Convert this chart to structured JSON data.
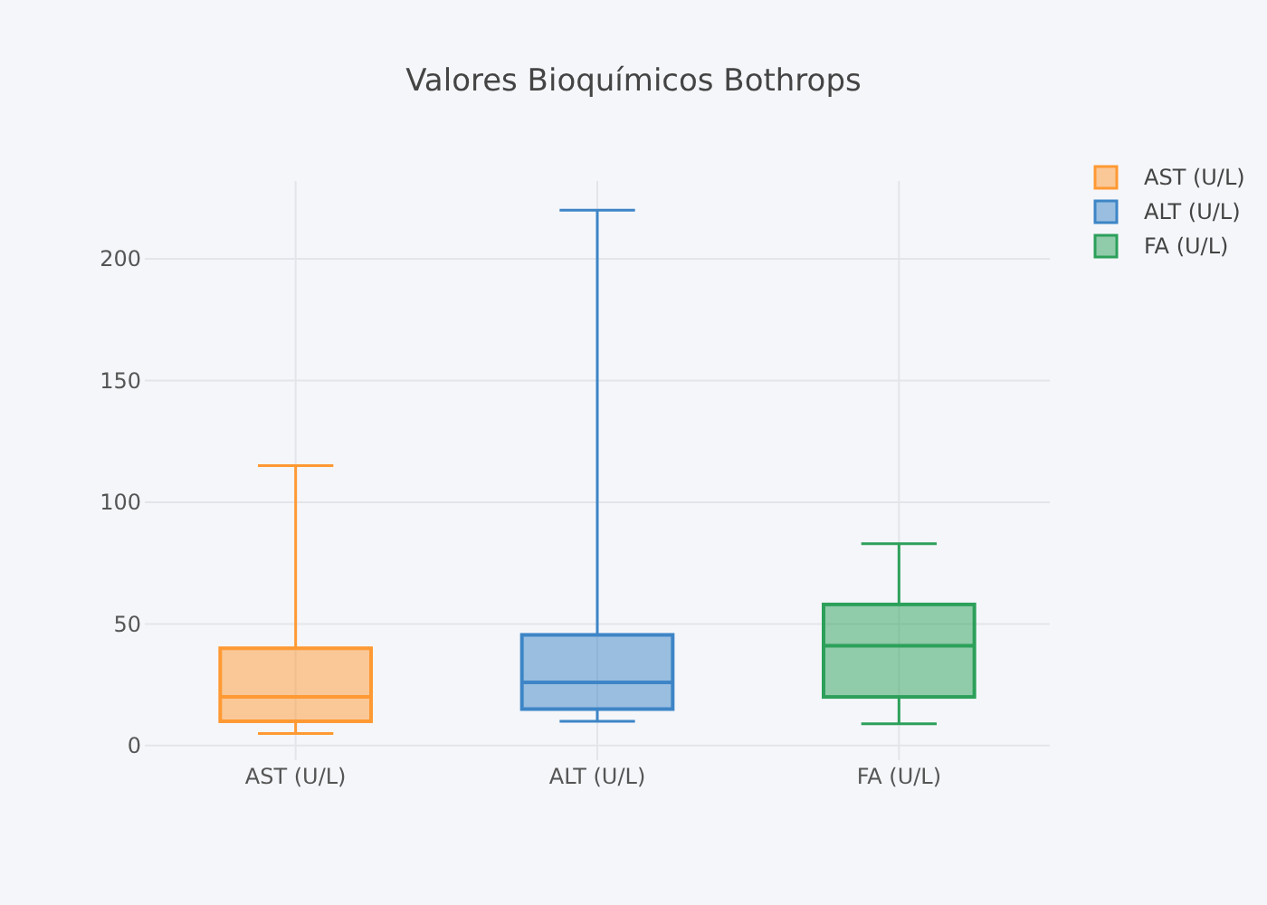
{
  "chart_data": {
    "type": "box",
    "title": "Valores Bioquímicos Bothrops",
    "categories": [
      "AST (U/L)",
      "ALT (U/L)",
      "FA (U/L)"
    ],
    "series": [
      {
        "name": "AST (U/L)",
        "color": "#ff9933",
        "boxes": [
          {
            "low": 5,
            "q1": 10,
            "median": 20,
            "q3": 40,
            "high": 115
          },
          null,
          null
        ]
      },
      {
        "name": "ALT (U/L)",
        "color": "#3d85c6",
        "boxes": [
          null,
          {
            "low": 10,
            "q1": 15,
            "median": 26,
            "q3": 45.5,
            "high": 220
          },
          null
        ]
      },
      {
        "name": "FA (U/L)",
        "color": "#2ca05a",
        "boxes": [
          null,
          null,
          {
            "low": 9,
            "q1": 20,
            "median": 41,
            "q3": 58,
            "high": 83
          }
        ]
      }
    ],
    "ylim": [
      -6,
      232
    ],
    "yticks": [
      0,
      50,
      100,
      150,
      200
    ],
    "grid": true,
    "legend": "top right"
  }
}
